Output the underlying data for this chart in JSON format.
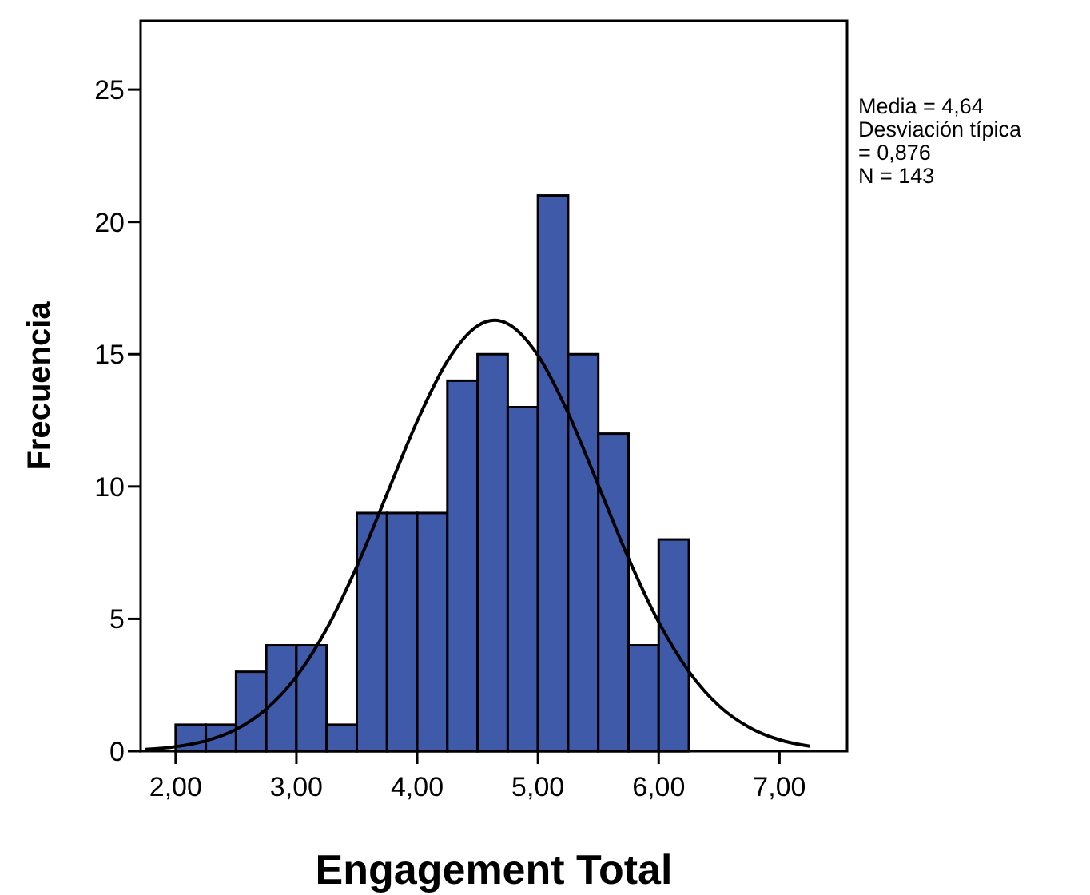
{
  "chart_data": {
    "type": "histogram",
    "xlabel": "Engagement Total",
    "ylabel": "Frecuencia",
    "bins": [
      2.0,
      2.25,
      2.5,
      2.75,
      3.0,
      3.25,
      3.5,
      3.75,
      4.0,
      4.25,
      4.5,
      4.75,
      5.0,
      5.25,
      5.5,
      5.75,
      6.0,
      6.25
    ],
    "values": [
      1,
      1,
      3,
      4,
      4,
      1,
      9,
      9,
      9,
      14,
      15,
      13,
      21,
      15,
      12,
      4,
      8
    ],
    "color": "#3f5aa9",
    "series": [
      {
        "type": "line",
        "color": "#000000",
        "x": [
          1.75,
          2.0,
          2.25,
          2.5,
          2.75,
          3.0,
          3.25,
          3.5,
          3.75,
          4.0,
          4.25,
          4.5,
          4.64,
          4.75,
          5.0,
          5.25,
          5.5,
          5.75,
          6.0,
          6.25,
          6.5,
          6.75,
          7.0,
          7.25
        ],
        "values": [
          0.07,
          0.17,
          0.39,
          0.82,
          1.59,
          2.82,
          4.62,
          6.98,
          9.72,
          12.47,
          14.74,
          16.07,
          16.28,
          16.15,
          14.96,
          12.78,
          10.05,
          7.29,
          4.88,
          3.01,
          1.71,
          0.9,
          0.43,
          0.19
        ]
      }
    ],
    "xlim": [
      1.71,
      7.56
    ],
    "ylim": [
      0,
      27.6
    ],
    "xticks": [
      {
        "value": 2,
        "label": "2,00"
      },
      {
        "value": 3,
        "label": "3,00"
      },
      {
        "value": 4,
        "label": "4,00"
      },
      {
        "value": 5,
        "label": "5,00"
      },
      {
        "value": 6,
        "label": "6,00"
      },
      {
        "value": 7,
        "label": "7,00"
      }
    ],
    "yticks": [
      0,
      5,
      10,
      15,
      20,
      25
    ],
    "annotations": [
      "Media = 4,64",
      "Desviación típica = 0,876",
      "N = 143"
    ]
  }
}
